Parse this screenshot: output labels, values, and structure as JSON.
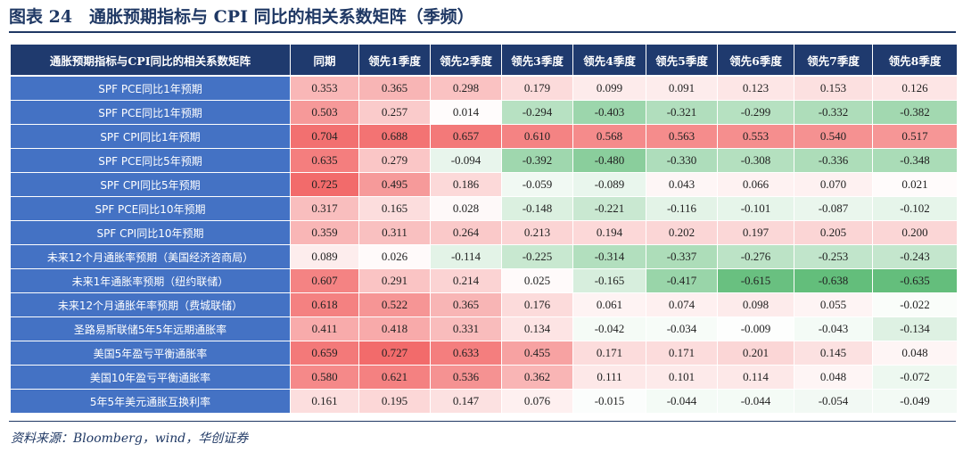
{
  "title": "图表 24　通胀预期指标与 CPI 同比的相关系数矩阵（季频）",
  "table": {
    "corner_label": "通胀预期指标与CPI同比的相关系数矩阵",
    "columns": [
      "同期",
      "领先1季度",
      "领先2季度",
      "领先3季度",
      "领先4季度",
      "领先5季度",
      "领先6季度",
      "领先7季度",
      "领先8季度"
    ],
    "rows": [
      {
        "label": "SPF PCE同比1年预期",
        "values": [
          "0.353",
          "0.365",
          "0.298",
          "0.179",
          "0.099",
          "0.091",
          "0.123",
          "0.153",
          "0.126"
        ]
      },
      {
        "label": "SPF PCE同比1年预期",
        "values": [
          "0.503",
          "0.257",
          "0.014",
          "-0.294",
          "-0.403",
          "-0.321",
          "-0.299",
          "-0.332",
          "-0.382"
        ]
      },
      {
        "label": "SPF CPI同比1年预期",
        "values": [
          "0.704",
          "0.688",
          "0.657",
          "0.610",
          "0.568",
          "0.563",
          "0.553",
          "0.540",
          "0.517"
        ]
      },
      {
        "label": "SPF PCE同比5年预期",
        "values": [
          "0.635",
          "0.279",
          "-0.094",
          "-0.392",
          "-0.480",
          "-0.330",
          "-0.308",
          "-0.336",
          "-0.348"
        ]
      },
      {
        "label": "SPF CPI同比5年预期",
        "values": [
          "0.725",
          "0.495",
          "0.186",
          "-0.059",
          "-0.089",
          "0.043",
          "0.066",
          "0.070",
          "0.021"
        ]
      },
      {
        "label": "SPF PCE同比10年预期",
        "values": [
          "0.317",
          "0.165",
          "0.028",
          "-0.148",
          "-0.221",
          "-0.116",
          "-0.101",
          "-0.087",
          "-0.102"
        ]
      },
      {
        "label": "SPF CPI同比10年预期",
        "values": [
          "0.359",
          "0.311",
          "0.264",
          "0.213",
          "0.194",
          "0.202",
          "0.197",
          "0.205",
          "0.200"
        ]
      },
      {
        "label": "未来12个月通胀率预期（美国经济咨商局）",
        "values": [
          "0.089",
          "0.026",
          "-0.114",
          "-0.225",
          "-0.314",
          "-0.337",
          "-0.276",
          "-0.253",
          "-0.243"
        ]
      },
      {
        "label": "未来1年通胀率预期（纽约联储）",
        "values": [
          "0.607",
          "0.291",
          "0.214",
          "0.025",
          "-0.165",
          "-0.417",
          "-0.615",
          "-0.638",
          "-0.635"
        ]
      },
      {
        "label": "未来12个月通胀年率预期（费城联储）",
        "values": [
          "0.618",
          "0.522",
          "0.365",
          "0.176",
          "0.061",
          "0.074",
          "0.098",
          "0.055",
          "-0.022"
        ]
      },
      {
        "label": "圣路易斯联储5年5年远期通胀率",
        "values": [
          "0.411",
          "0.418",
          "0.331",
          "0.134",
          "-0.042",
          "-0.034",
          "-0.009",
          "-0.043",
          "-0.134"
        ]
      },
      {
        "label": "美国5年盈亏平衡通胀率",
        "values": [
          "0.659",
          "0.727",
          "0.633",
          "0.455",
          "0.171",
          "0.171",
          "0.201",
          "0.145",
          "0.048"
        ]
      },
      {
        "label": "美国10年盈亏平衡通胀率",
        "values": [
          "0.580",
          "0.621",
          "0.536",
          "0.362",
          "0.111",
          "0.101",
          "0.114",
          "0.048",
          "-0.072"
        ]
      },
      {
        "label": "5年5年美元通胀互换利率",
        "values": [
          "0.161",
          "0.195",
          "0.147",
          "0.076",
          "-0.015",
          "-0.044",
          "-0.044",
          "-0.054",
          "-0.049"
        ]
      }
    ]
  },
  "source": "资料来源：Bloomberg，wind，华创证券",
  "colors": {
    "header_bg": "#1f3a6e",
    "row_label_bg": "#4472c4",
    "positive_max": "#f26b6b",
    "neutral": "#ffffff",
    "negative_max": "#63be7b",
    "title_color": "#1f3864"
  }
}
